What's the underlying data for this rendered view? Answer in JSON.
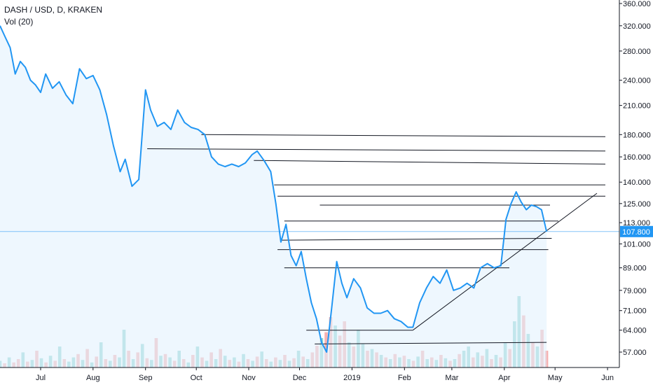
{
  "legend": {
    "title": "DASH / USD, D, KRAKEN",
    "volume_label": "Vol (20)"
  },
  "chart_data": {
    "type": "line",
    "symbol": "DASH / USD",
    "interval": "D",
    "exchange": "KRAKEN",
    "y_scale": "log",
    "y_ticks": [
      360,
      320,
      280,
      240,
      210,
      180,
      160,
      140,
      125,
      113,
      101,
      89,
      79,
      71,
      64,
      57
    ],
    "y_tick_labels": [
      "360.000",
      "320.000",
      "280.000",
      "240.000",
      "210.000",
      "180.000",
      "160.000",
      "140.000",
      "125.000",
      "113.000",
      "101.000",
      "89.000",
      "79.000",
      "71.000",
      "64.000",
      "57.000"
    ],
    "x_tick_labels": [
      "Jul",
      "Aug",
      "Sep",
      "Oct",
      "Nov",
      "Dec",
      "2019",
      "Feb",
      "Mar",
      "Apr",
      "May",
      "Jun"
    ],
    "x_tick_dates": [
      "2018-07-01",
      "2018-08-01",
      "2018-09-01",
      "2018-10-01",
      "2018-11-01",
      "2018-12-01",
      "2019-01-01",
      "2019-02-01",
      "2019-03-01",
      "2019-04-01",
      "2019-05-01",
      "2019-06-01"
    ],
    "last_price": 107.8,
    "last_price_label": "107.800",
    "x_range": [
      "2018-06-07",
      "2019-06-08"
    ],
    "price_points": [
      [
        "2018-06-07",
        320
      ],
      [
        "2018-06-10",
        302
      ],
      [
        "2018-06-13",
        285
      ],
      [
        "2018-06-16",
        248
      ],
      [
        "2018-06-19",
        265
      ],
      [
        "2018-06-22",
        257
      ],
      [
        "2018-06-25",
        240
      ],
      [
        "2018-06-28",
        234
      ],
      [
        "2018-07-01",
        225
      ],
      [
        "2018-07-04",
        248
      ],
      [
        "2018-07-08",
        230
      ],
      [
        "2018-07-12",
        238
      ],
      [
        "2018-07-16",
        222
      ],
      [
        "2018-07-20",
        212
      ],
      [
        "2018-07-24",
        255
      ],
      [
        "2018-07-28",
        242
      ],
      [
        "2018-08-01",
        246
      ],
      [
        "2018-08-05",
        228
      ],
      [
        "2018-08-09",
        200
      ],
      [
        "2018-08-13",
        170
      ],
      [
        "2018-08-17",
        148
      ],
      [
        "2018-08-20",
        158
      ],
      [
        "2018-08-24",
        137
      ],
      [
        "2018-08-28",
        142
      ],
      [
        "2018-09-01",
        228
      ],
      [
        "2018-09-04",
        205
      ],
      [
        "2018-09-08",
        188
      ],
      [
        "2018-09-12",
        192
      ],
      [
        "2018-09-16",
        185
      ],
      [
        "2018-09-20",
        205
      ],
      [
        "2018-09-24",
        192
      ],
      [
        "2018-09-28",
        187
      ],
      [
        "2018-10-02",
        185
      ],
      [
        "2018-10-06",
        180
      ],
      [
        "2018-10-10",
        160
      ],
      [
        "2018-10-14",
        154
      ],
      [
        "2018-10-18",
        152
      ],
      [
        "2018-10-22",
        154
      ],
      [
        "2018-10-26",
        152
      ],
      [
        "2018-10-30",
        155
      ],
      [
        "2018-11-03",
        162
      ],
      [
        "2018-11-06",
        165
      ],
      [
        "2018-11-10",
        157
      ],
      [
        "2018-11-14",
        148
      ],
      [
        "2018-11-17",
        125
      ],
      [
        "2018-11-20",
        102
      ],
      [
        "2018-11-23",
        112
      ],
      [
        "2018-11-26",
        95
      ],
      [
        "2018-11-29",
        90
      ],
      [
        "2018-12-02",
        97
      ],
      [
        "2018-12-05",
        84
      ],
      [
        "2018-12-08",
        74
      ],
      [
        "2018-12-11",
        68
      ],
      [
        "2018-12-14",
        60
      ],
      [
        "2018-12-17",
        57
      ],
      [
        "2018-12-20",
        72
      ],
      [
        "2018-12-23",
        92
      ],
      [
        "2018-12-26",
        82
      ],
      [
        "2018-12-29",
        76
      ],
      [
        "2019-01-02",
        84
      ],
      [
        "2019-01-06",
        80
      ],
      [
        "2019-01-10",
        72
      ],
      [
        "2019-01-14",
        70
      ],
      [
        "2019-01-18",
        70
      ],
      [
        "2019-01-22",
        71
      ],
      [
        "2019-01-26",
        68
      ],
      [
        "2019-01-30",
        67
      ],
      [
        "2019-02-03",
        65
      ],
      [
        "2019-02-06",
        65
      ],
      [
        "2019-02-10",
        74
      ],
      [
        "2019-02-14",
        80
      ],
      [
        "2019-02-18",
        85
      ],
      [
        "2019-02-22",
        82
      ],
      [
        "2019-02-26",
        88
      ],
      [
        "2019-03-02",
        79
      ],
      [
        "2019-03-06",
        80
      ],
      [
        "2019-03-10",
        82
      ],
      [
        "2019-03-14",
        80
      ],
      [
        "2019-03-18",
        89
      ],
      [
        "2019-03-22",
        91
      ],
      [
        "2019-03-26",
        89
      ],
      [
        "2019-03-30",
        90
      ],
      [
        "2019-04-02",
        115
      ],
      [
        "2019-04-05",
        125
      ],
      [
        "2019-04-08",
        133
      ],
      [
        "2019-04-11",
        126
      ],
      [
        "2019-04-14",
        121
      ],
      [
        "2019-04-17",
        124
      ],
      [
        "2019-04-20",
        123
      ],
      [
        "2019-04-23",
        121
      ],
      [
        "2019-04-26",
        107.8
      ]
    ],
    "volume_bars": {
      "note": "daily volume bars; teal = up day, red = down day; relative height 0-1",
      "values": [
        0.08,
        0.05,
        0.12,
        0.06,
        0.1,
        0.18,
        0.07,
        0.09,
        0.2,
        0.11,
        0.06,
        0.14,
        0.08,
        0.25,
        0.1,
        0.07,
        0.12,
        0.16,
        0.09,
        0.22,
        0.06,
        0.13,
        0.3,
        0.1,
        0.08,
        0.15,
        0.12,
        0.45,
        0.2,
        0.1,
        0.18,
        0.28,
        0.11,
        0.09,
        0.35,
        0.14,
        0.16,
        0.12,
        0.08,
        0.2,
        0.1,
        0.06,
        0.15,
        0.25,
        0.12,
        0.08,
        0.18,
        0.1,
        0.22,
        0.14,
        0.09,
        0.12,
        0.07,
        0.16,
        0.1,
        0.08,
        0.13,
        0.19,
        0.1,
        0.07,
        0.12,
        0.09,
        0.15,
        0.08,
        0.11,
        0.2,
        0.13,
        0.1,
        0.18,
        0.26,
        0.35,
        0.42,
        0.6,
        0.5,
        0.38,
        0.55,
        0.3,
        0.25,
        0.45,
        0.28,
        0.2,
        0.22,
        0.18,
        0.15,
        0.12,
        0.1,
        0.16,
        0.12,
        0.14,
        0.1,
        0.08,
        0.13,
        0.2,
        0.1,
        0.12,
        0.09,
        0.15,
        0.11,
        0.08,
        0.1,
        0.16,
        0.2,
        0.25,
        0.12,
        0.18,
        0.14,
        0.22,
        0.1,
        0.15,
        0.12,
        0.3,
        0.22,
        0.55,
        0.85,
        0.62,
        0.4,
        0.3,
        0.25,
        0.45,
        0.2
      ],
      "up": [
        1,
        0,
        1,
        0,
        0,
        1,
        0,
        1,
        0,
        1,
        0,
        1,
        0,
        1,
        0,
        1,
        1,
        0,
        1,
        0,
        1,
        0,
        1,
        0,
        1,
        0,
        1,
        1,
        0,
        1,
        0,
        1,
        0,
        1,
        0,
        1,
        0,
        1,
        0,
        1,
        0,
        1,
        0,
        1,
        0,
        1,
        0,
        1,
        0,
        1,
        0,
        1,
        0,
        1,
        0,
        1,
        0,
        1,
        0,
        1,
        0,
        1,
        0,
        1,
        0,
        1,
        0,
        1,
        0,
        0,
        1,
        0,
        0,
        1,
        0,
        0,
        1,
        0,
        1,
        1,
        0,
        1,
        0,
        1,
        0,
        1,
        0,
        1,
        0,
        1,
        0,
        1,
        0,
        1,
        0,
        1,
        0,
        1,
        0,
        1,
        0,
        1,
        1,
        0,
        1,
        0,
        1,
        0,
        1,
        0,
        1,
        0,
        1,
        1,
        0,
        1,
        0,
        1,
        0,
        0
      ]
    },
    "horizontal_levels": [
      {
        "from": "2018-10-04",
        "to": "2019-06-08",
        "value_start": 180,
        "value_end": 178
      },
      {
        "from": "2018-09-02",
        "to": "2019-06-08",
        "value_start": 167,
        "value_end": 165
      },
      {
        "from": "2018-11-04",
        "to": "2019-06-08",
        "value_start": 157,
        "value_end": 154
      },
      {
        "from": "2018-11-16",
        "to": "2019-06-08",
        "value_start": 138,
        "value_end": 138
      },
      {
        "from": "2018-11-18",
        "to": "2019-06-06",
        "value_start": 130,
        "value_end": 130
      },
      {
        "from": "2018-12-13",
        "to": "2019-04-28",
        "value_start": 124,
        "value_end": 124
      },
      {
        "from": "2018-11-22",
        "to": "2019-05-03",
        "value_start": 114,
        "value_end": 114
      },
      {
        "from": "2018-11-20",
        "to": "2019-04-29",
        "value_start": 103,
        "value_end": 104
      },
      {
        "from": "2018-11-18",
        "to": "2019-04-27",
        "value_start": 98,
        "value_end": 98
      },
      {
        "from": "2018-11-22",
        "to": "2019-04-04",
        "value_start": 89,
        "value_end": 89
      },
      {
        "from": "2018-12-05",
        "to": "2019-02-06",
        "value_start": 64,
        "value_end": 64
      },
      {
        "from": "2018-12-10",
        "to": "2019-04-26",
        "value_start": 59.5,
        "value_end": 60
      }
    ],
    "trend_line": {
      "from": "2019-02-06",
      "to": "2019-06-07",
      "value_start": 64,
      "value_end": 132
    }
  },
  "colors": {
    "line": "#2196f3",
    "area_fill": "#e3f2fd",
    "drawing": "#131722",
    "volume_up": "#7ecdc9",
    "volume_down": "#f4a3a3",
    "price_tag_bg": "#2196f3",
    "price_line": "#2196f3",
    "axis_border": "#787b86"
  }
}
